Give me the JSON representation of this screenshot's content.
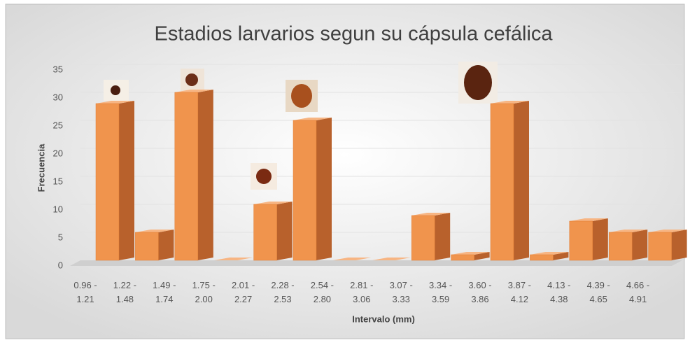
{
  "chart_data": {
    "type": "bar3d",
    "title": "Estadios larvarios segun su cápsula cefálica",
    "x_label": "Intervalo (mm)",
    "y_label": "Frecuencia",
    "categories": [
      "0.96 - 1.21",
      "1.22 - 1.48",
      "1.49 - 1.74",
      "1.75 - 2.00",
      "2.01 - 2.27",
      "2.28 - 2.53",
      "2.54 - 2.80",
      "2.81 - 3.06",
      "3.07 - 3.33",
      "3.34 - 3.59",
      "3.60 - 3.86",
      "3.87 - 4.12",
      "4.13 - 4.38",
      "4.39 - 4.65",
      "4.66 - 4.91"
    ],
    "values": [
      28,
      5,
      30,
      0,
      10,
      25,
      0,
      0,
      8,
      1,
      28,
      1,
      7,
      5,
      5
    ],
    "color": "#f0944d",
    "ylim": [
      0,
      35
    ],
    "yticks": [
      0,
      5,
      10,
      15,
      20,
      25,
      30,
      35
    ],
    "grid": true
  }
}
